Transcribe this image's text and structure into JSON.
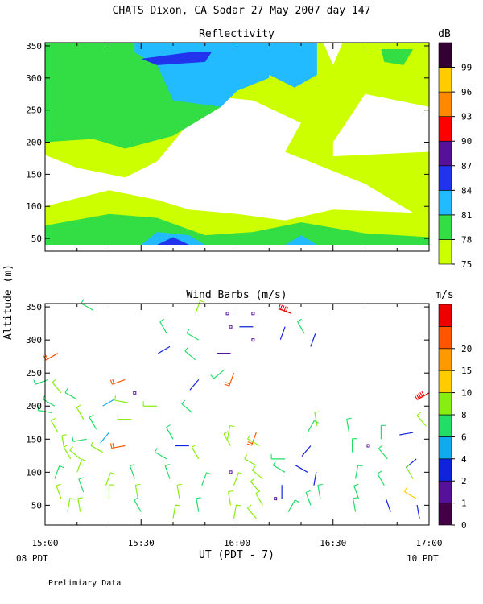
{
  "title": "CHATS Dixon, CA  Sodar  27 May 2007  day 147",
  "ylabel": "Altitude (m)",
  "xlabel": "UT  (PDT - 7)",
  "left_time_note": "08 PDT",
  "right_time_note": "10 PDT",
  "footer_note": "Prelimiary Data",
  "colors": {
    "c75": "#ccff00",
    "c78": "#33dd44",
    "c81": "#22bbff",
    "c84": "#2233ee",
    "c87": "#55119a",
    "c90": "#ff0000",
    "c93": "#ff8800",
    "c96": "#ffcc00",
    "c99": "#330033",
    "w0": "#440044",
    "w1": "#551199",
    "w2": "#1122dd",
    "w4": "#11aaee",
    "w6": "#22dd66",
    "w8": "#88ee11",
    "w10": "#ffcc00",
    "w15": "#ff9900",
    "w20": "#ff5500",
    "w25": "#ee0000"
  },
  "chart_data": [
    {
      "type": "heatmap",
      "title": "Reflectivity",
      "colorbar_title": "dB",
      "colorbar_ticks": [
        "75",
        "78",
        "81",
        "84",
        "87",
        "90",
        "93",
        "96",
        "99"
      ],
      "x_ticks": [
        "15:00",
        "15:30",
        "16:00",
        "16:30",
        "17:00"
      ],
      "y_ticks": [
        "50",
        "100",
        "150",
        "200",
        "250",
        "300",
        "350"
      ],
      "xlim": [
        "15:00",
        "17:00"
      ],
      "ylim": [
        30,
        355
      ],
      "regions": [
        {
          "level": "75",
          "polygon": [
            [
              "15:00",
              40
            ],
            [
              "17:00",
              40
            ],
            [
              "17:00",
              355
            ],
            [
              "15:00",
              355
            ]
          ]
        },
        {
          "level": "78",
          "polygon": [
            [
              "15:00",
              40
            ],
            [
              "17:00",
              40
            ],
            [
              "17:00",
              52
            ],
            [
              "16:40",
              58
            ],
            [
              "16:20",
              75
            ],
            [
              "16:05",
              60
            ],
            [
              "15:50",
              55
            ],
            [
              "15:35",
              82
            ],
            [
              "15:20",
              88
            ],
            [
              "15:00",
              70
            ]
          ]
        },
        {
          "level": "81",
          "polygon": [
            [
              "15:30",
              40
            ],
            [
              "15:50",
              40
            ],
            [
              "15:45",
              55
            ],
            [
              "15:35",
              60
            ]
          ]
        },
        {
          "level": "81",
          "polygon": [
            [
              "16:15",
              40
            ],
            [
              "16:25",
              40
            ],
            [
              "16:20",
              55
            ]
          ]
        },
        {
          "level": "84",
          "polygon": [
            [
              "15:35",
              40
            ],
            [
              "15:45",
              40
            ],
            [
              "15:40",
              52
            ]
          ]
        },
        {
          "level": "none",
          "polygon": [
            [
              "15:00",
              100
            ],
            [
              "15:20",
              125
            ],
            [
              "15:35",
              110
            ],
            [
              "15:45",
              95
            ],
            [
              "16:00",
              88
            ],
            [
              "16:15",
              78
            ],
            [
              "16:30",
              95
            ],
            [
              "16:55",
              90
            ],
            [
              "16:40",
              135
            ],
            [
              "16:25",
              165
            ],
            [
              "16:15",
              185
            ],
            [
              "16:20",
              230
            ],
            [
              "16:05",
              265
            ],
            [
              "15:55",
              270
            ],
            [
              "15:45",
              230
            ],
            [
              "15:35",
              170
            ],
            [
              "15:25",
              145
            ],
            [
              "15:10",
              160
            ],
            [
              "15:00",
              180
            ]
          ]
        },
        {
          "level": "none",
          "polygon": [
            [
              "16:30",
              178
            ],
            [
              "17:00",
              185
            ],
            [
              "17:00",
              255
            ],
            [
              "16:40",
              275
            ],
            [
              "16:30",
              200
            ]
          ]
        },
        {
          "level": "78",
          "polygon": [
            [
              "15:00",
              355
            ],
            [
              "15:00",
              200
            ],
            [
              "15:15",
              205
            ],
            [
              "15:25",
              190
            ],
            [
              "15:40",
              210
            ],
            [
              "15:55",
              255
            ],
            [
              "15:55",
              300
            ],
            [
              "16:05",
              310
            ],
            [
              "16:10",
              345
            ],
            [
              "16:10",
              355
            ]
          ]
        },
        {
          "level": "81",
          "polygon": [
            [
              "15:28",
              355
            ],
            [
              "16:10",
              355
            ],
            [
              "16:10",
              300
            ],
            [
              "16:00",
              280
            ],
            [
              "15:55",
              255
            ],
            [
              "15:40",
              265
            ],
            [
              "15:35",
              320
            ],
            [
              "15:28",
              340
            ]
          ]
        },
        {
          "level": "84",
          "polygon": [
            [
              "15:30",
              330
            ],
            [
              "15:45",
              340
            ],
            [
              "15:52",
              340
            ],
            [
              "15:50",
              325
            ],
            [
              "15:35",
              320
            ]
          ]
        },
        {
          "level": "81",
          "polygon": [
            [
              "16:05",
              355
            ],
            [
              "16:25",
              355
            ],
            [
              "16:25",
              305
            ],
            [
              "16:18",
              285
            ],
            [
              "16:10",
              305
            ]
          ]
        },
        {
          "level": "none",
          "polygon": [
            [
              "16:27",
              355
            ],
            [
              "16:33",
              355
            ],
            [
              "16:30",
              320
            ]
          ]
        },
        {
          "level": "78",
          "polygon": [
            [
              "16:45",
              345
            ],
            [
              "16:55",
              345
            ],
            [
              "16:52",
              320
            ],
            [
              "16:46",
              325
            ]
          ]
        }
      ]
    },
    {
      "type": "scatter",
      "title": "Wind Barbs (m/s)",
      "colorbar_title": "m/s",
      "colorbar_ticks": [
        "0",
        "1",
        "2",
        "4",
        "6",
        "8",
        "10",
        "15",
        "20"
      ],
      "x_ticks": [
        "15:00",
        "15:30",
        "16:00",
        "16:30",
        "17:00"
      ],
      "y_ticks": [
        "50",
        "100",
        "150",
        "200",
        "250",
        "300",
        "350"
      ],
      "xlim": [
        "15:00",
        "17:00"
      ],
      "ylim": [
        20,
        355
      ],
      "barbs": [
        {
          "t": "15:01",
          "z": 240,
          "dir": 250,
          "spd": 4
        },
        {
          "t": "15:05",
          "z": 220,
          "dir": 320,
          "spd": 6
        },
        {
          "t": "15:03",
          "z": 200,
          "dir": 300,
          "spd": 4
        },
        {
          "t": "15:02",
          "z": 190,
          "dir": 280,
          "spd": 4
        },
        {
          "t": "15:04",
          "z": 160,
          "dir": 330,
          "spd": 6
        },
        {
          "t": "15:06",
          "z": 135,
          "dir": 350,
          "spd": 6
        },
        {
          "t": "15:03",
          "z": 90,
          "dir": 20,
          "spd": 4
        },
        {
          "t": "15:05",
          "z": 60,
          "dir": 340,
          "spd": 6
        },
        {
          "t": "15:07",
          "z": 40,
          "dir": 10,
          "spd": 6
        },
        {
          "t": "15:10",
          "z": 210,
          "dir": 300,
          "spd": 4
        },
        {
          "t": "15:12",
          "z": 180,
          "dir": 330,
          "spd": 6
        },
        {
          "t": "15:13",
          "z": 150,
          "dir": 260,
          "spd": 4
        },
        {
          "t": "15:11",
          "z": 120,
          "dir": 310,
          "spd": 6
        },
        {
          "t": "15:10",
          "z": 100,
          "dir": 20,
          "spd": 6
        },
        {
          "t": "15:12",
          "z": 70,
          "dir": 340,
          "spd": 4
        },
        {
          "t": "15:11",
          "z": 40,
          "dir": 350,
          "spd": 6
        },
        {
          "t": "15:04",
          "z": 280,
          "dir": 240,
          "spd": 15
        },
        {
          "t": "15:15",
          "z": 345,
          "dir": 300,
          "spd": 4
        },
        {
          "t": "15:18",
          "z": 200,
          "dir": 60,
          "spd": 2
        },
        {
          "t": "15:16",
          "z": 165,
          "dir": 330,
          "spd": 4
        },
        {
          "t": "15:18",
          "z": 130,
          "dir": 300,
          "spd": 6
        },
        {
          "t": "15:19",
          "z": 80,
          "dir": 20,
          "spd": 6
        },
        {
          "t": "15:20",
          "z": 60,
          "dir": 0,
          "spd": 6
        },
        {
          "t": "15:25",
          "z": 240,
          "dir": 250,
          "spd": 15
        },
        {
          "t": "15:25",
          "z": 140,
          "dir": 260,
          "spd": 15
        },
        {
          "t": "15:27",
          "z": 180,
          "dir": 270,
          "spd": 6
        },
        {
          "t": "15:26",
          "z": 205,
          "dir": 280,
          "spd": 6
        },
        {
          "t": "15:28",
          "z": 90,
          "dir": 340,
          "spd": 4
        },
        {
          "t": "15:29",
          "z": 60,
          "dir": 350,
          "spd": 6
        },
        {
          "t": "15:30",
          "z": 40,
          "dir": 330,
          "spd": 4
        },
        {
          "t": "15:38",
          "z": 310,
          "dir": 330,
          "spd": 4
        },
        {
          "t": "15:39",
          "z": 290,
          "dir": 240,
          "spd": 1
        },
        {
          "t": "15:35",
          "z": 200,
          "dir": 270,
          "spd": 6
        },
        {
          "t": "15:40",
          "z": 150,
          "dir": 330,
          "spd": 4
        },
        {
          "t": "15:38",
          "z": 120,
          "dir": 300,
          "spd": 4
        },
        {
          "t": "15:39",
          "z": 90,
          "dir": 340,
          "spd": 4
        },
        {
          "t": "15:42",
          "z": 60,
          "dir": 350,
          "spd": 6
        },
        {
          "t": "15:40",
          "z": 30,
          "dir": 10,
          "spd": 6
        },
        {
          "t": "15:47",
          "z": 340,
          "dir": 20,
          "spd": 6
        },
        {
          "t": "15:48",
          "z": 300,
          "dir": 300,
          "spd": 4
        },
        {
          "t": "15:47",
          "z": 270,
          "dir": 310,
          "spd": 4
        },
        {
          "t": "15:48",
          "z": 240,
          "dir": 220,
          "spd": 1
        },
        {
          "t": "15:46",
          "z": 190,
          "dir": 310,
          "spd": 4
        },
        {
          "t": "15:45",
          "z": 140,
          "dir": 270,
          "spd": 1
        },
        {
          "t": "15:48",
          "z": 120,
          "dir": 330,
          "spd": 6
        },
        {
          "t": "15:49",
          "z": 80,
          "dir": 20,
          "spd": 4
        },
        {
          "t": "15:48",
          "z": 40,
          "dir": 350,
          "spd": 4
        },
        {
          "t": "15:56",
          "z": 255,
          "dir": 230,
          "spd": 4
        },
        {
          "t": "15:58",
          "z": 280,
          "dir": 270,
          "spd": 0
        },
        {
          "t": "15:59",
          "z": 250,
          "dir": 200,
          "spd": 15
        },
        {
          "t": "15:58",
          "z": 140,
          "dir": 330,
          "spd": 6
        },
        {
          "t": "15:57",
          "z": 150,
          "dir": 10,
          "spd": 6
        },
        {
          "t": "15:59",
          "z": 80,
          "dir": 20,
          "spd": 6
        },
        {
          "t": "15:58",
          "z": 50,
          "dir": 350,
          "spd": 6
        },
        {
          "t": "15:59",
          "z": 30,
          "dir": 10,
          "spd": 6
        },
        {
          "t": "16:05",
          "z": 320,
          "dir": 270,
          "spd": 1
        },
        {
          "t": "16:06",
          "z": 160,
          "dir": 200,
          "spd": 15
        },
        {
          "t": "16:07",
          "z": 140,
          "dir": 300,
          "spd": 6
        },
        {
          "t": "16:06",
          "z": 110,
          "dir": 300,
          "spd": 6
        },
        {
          "t": "16:08",
          "z": 90,
          "dir": 310,
          "spd": 6
        },
        {
          "t": "16:07",
          "z": 70,
          "dir": 320,
          "spd": 6
        },
        {
          "t": "16:08",
          "z": 50,
          "dir": 330,
          "spd": 6
        },
        {
          "t": "16:06",
          "z": 30,
          "dir": 320,
          "spd": 6
        },
        {
          "t": "16:15",
          "z": 320,
          "dir": 200,
          "spd": 1
        },
        {
          "t": "16:17",
          "z": 340,
          "dir": 290,
          "spd": 20
        },
        {
          "t": "16:15",
          "z": 120,
          "dir": 270,
          "spd": 4
        },
        {
          "t": "16:15",
          "z": 100,
          "dir": 300,
          "spd": 4
        },
        {
          "t": "16:14",
          "z": 60,
          "dir": 0,
          "spd": 1
        },
        {
          "t": "16:16",
          "z": 40,
          "dir": 30,
          "spd": 4
        },
        {
          "t": "16:21",
          "z": 310,
          "dir": 330,
          "spd": 4
        },
        {
          "t": "16:23",
          "z": 290,
          "dir": 20,
          "spd": 1
        },
        {
          "t": "16:22",
          "z": 160,
          "dir": 30,
          "spd": 4
        },
        {
          "t": "16:23",
          "z": 140,
          "dir": 220,
          "spd": 1
        },
        {
          "t": "16:22",
          "z": 100,
          "dir": 300,
          "spd": 1
        },
        {
          "t": "16:24",
          "z": 80,
          "dir": 10,
          "spd": 1
        },
        {
          "t": "16:23",
          "z": 50,
          "dir": 340,
          "spd": 4
        },
        {
          "t": "16:25",
          "z": 170,
          "dir": 350,
          "spd": 6
        },
        {
          "t": "16:26",
          "z": 60,
          "dir": 350,
          "spd": 4
        },
        {
          "t": "16:35",
          "z": 160,
          "dir": 350,
          "spd": 4
        },
        {
          "t": "16:36",
          "z": 130,
          "dir": 0,
          "spd": 4
        },
        {
          "t": "16:37",
          "z": 90,
          "dir": 10,
          "spd": 4
        },
        {
          "t": "16:38",
          "z": 60,
          "dir": 340,
          "spd": 4
        },
        {
          "t": "16:37",
          "z": 40,
          "dir": 350,
          "spd": 4
        },
        {
          "t": "16:45",
          "z": 150,
          "dir": 0,
          "spd": 4
        },
        {
          "t": "16:47",
          "z": 120,
          "dir": 320,
          "spd": 4
        },
        {
          "t": "16:46",
          "z": 80,
          "dir": 330,
          "spd": 4
        },
        {
          "t": "16:48",
          "z": 40,
          "dir": 340,
          "spd": 1
        },
        {
          "t": "16:55",
          "z": 160,
          "dir": 260,
          "spd": 1
        },
        {
          "t": "16:56",
          "z": 120,
          "dir": 230,
          "spd": 1
        },
        {
          "t": "16:55",
          "z": 90,
          "dir": 330,
          "spd": 6
        },
        {
          "t": "16:56",
          "z": 60,
          "dir": 300,
          "spd": 8
        },
        {
          "t": "16:57",
          "z": 30,
          "dir": 350,
          "spd": 1
        },
        {
          "t": "16:59",
          "z": 170,
          "dir": 320,
          "spd": 6
        },
        {
          "t": "17:00",
          "z": 220,
          "dir": 240,
          "spd": 20
        },
        {
          "t": "15:20",
          "z": 160,
          "dir": 220,
          "spd": 2
        },
        {
          "t": "15:08",
          "z": 120,
          "dir": 330,
          "spd": 6
        }
      ],
      "calm_points": [
        {
          "t": "15:57",
          "z": 340
        },
        {
          "t": "16:05",
          "z": 340
        },
        {
          "t": "15:58",
          "z": 320
        },
        {
          "t": "16:05",
          "z": 300
        },
        {
          "t": "15:28",
          "z": 220
        },
        {
          "t": "15:58",
          "z": 100
        },
        {
          "t": "16:41",
          "z": 140
        },
        {
          "t": "16:12",
          "z": 60
        }
      ]
    }
  ]
}
